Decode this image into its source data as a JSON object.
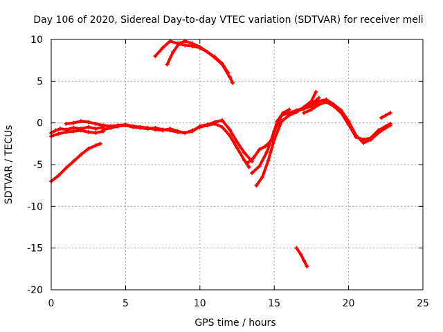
{
  "chart_data": {
    "type": "line",
    "title": "Day 106 of 2020, Sidereal Day-to-day VTEC variation (SDTVAR) for receiver meli",
    "xlabel": "GPS time / hours",
    "ylabel": "SDTVAR / TECUs",
    "xlim": [
      0,
      25
    ],
    "ylim": [
      -20,
      10
    ],
    "xticks": [
      0,
      5,
      10,
      15,
      20,
      25
    ],
    "yticks": [
      -20,
      -15,
      -10,
      -5,
      0,
      5,
      10
    ],
    "grid": true,
    "color": "#ff0000",
    "series": [
      {
        "name": "track-main-a",
        "x": [
          0.0,
          0.3,
          0.6,
          1.0,
          1.5,
          2.0,
          2.5,
          3.0,
          3.5
        ],
        "y": [
          -1.2,
          -0.9,
          -0.7,
          -0.8,
          -0.6,
          -0.7,
          -0.5,
          -0.7,
          -0.5
        ]
      },
      {
        "name": "track-main-b",
        "x": [
          0.0,
          0.5,
          1.0,
          1.5,
          2.0,
          2.5,
          3.0,
          3.5
        ],
        "y": [
          -1.6,
          -1.3,
          -1.1,
          -1.0,
          -0.9,
          -1.1,
          -1.2,
          -1.0
        ]
      },
      {
        "name": "track-main-c",
        "x": [
          1.0,
          1.5,
          2.0,
          2.5,
          3.0,
          3.5,
          4.0,
          4.5,
          5.0,
          5.5,
          6.0,
          6.5,
          7.0,
          7.5,
          8.0,
          8.5,
          9.0,
          9.5,
          10.0,
          10.5,
          11.0,
          11.5,
          12.0,
          12.5,
          13.0,
          13.3
        ],
        "y": [
          -0.1,
          0.0,
          0.2,
          0.1,
          -0.1,
          -0.3,
          -0.4,
          -0.3,
          -0.2,
          -0.4,
          -0.5,
          -0.6,
          -0.8,
          -0.9,
          -0.7,
          -1.0,
          -1.2,
          -0.9,
          -0.5,
          -0.3,
          -0.1,
          -0.5,
          -1.5,
          -3.0,
          -4.5,
          -5.3
        ]
      },
      {
        "name": "track-main-d",
        "x": [
          3.5,
          4.0,
          4.5,
          5.0,
          5.5,
          6.0,
          6.5,
          7.0,
          7.5,
          8.0,
          8.5,
          9.0,
          9.5,
          10.0,
          10.5,
          11.0,
          11.5,
          12.0,
          12.5,
          13.0,
          13.5
        ],
        "y": [
          -0.8,
          -0.6,
          -0.4,
          -0.3,
          -0.5,
          -0.6,
          -0.7,
          -0.6,
          -0.8,
          -0.9,
          -1.1,
          -1.2,
          -1.0,
          -0.4,
          -0.2,
          0.1,
          0.3,
          -0.8,
          -2.3,
          -3.6,
          -4.6
        ]
      },
      {
        "name": "track-morning-rise",
        "x": [
          0.0,
          0.5,
          1.0,
          1.5,
          2.0,
          2.5,
          3.0,
          3.3
        ],
        "y": [
          -7.0,
          -6.3,
          -5.4,
          -4.6,
          -3.8,
          -3.1,
          -2.7,
          -2.5
        ]
      },
      {
        "name": "track-high-a",
        "x": [
          7.0,
          7.5,
          8.0,
          8.5,
          9.0,
          9.5,
          10.0,
          10.5,
          11.0,
          11.5,
          12.0,
          12.2
        ],
        "y": [
          8.0,
          9.0,
          9.8,
          9.5,
          9.3,
          9.2,
          9.0,
          8.5,
          7.8,
          7.0,
          5.5,
          4.8
        ]
      },
      {
        "name": "track-high-b",
        "x": [
          7.8,
          8.2,
          8.6,
          9.0,
          9.5,
          10.0,
          10.5,
          11.0,
          11.5,
          11.9
        ],
        "y": [
          7.0,
          8.5,
          9.5,
          9.8,
          9.5,
          9.1,
          8.5,
          7.9,
          7.1,
          6.0
        ]
      },
      {
        "name": "track-dip-rise-a",
        "x": [
          13.5,
          14.0,
          14.5,
          15.0,
          15.5,
          16.0,
          16.5,
          17.0,
          17.5,
          18.0
        ],
        "y": [
          -6.0,
          -5.2,
          -3.5,
          -1.0,
          0.9,
          1.2,
          1.5,
          1.8,
          2.2,
          3.0
        ]
      },
      {
        "name": "track-dip-rise-b",
        "x": [
          13.8,
          14.2,
          14.6,
          15.0,
          15.5,
          16.0,
          16.5,
          17.0,
          17.5,
          17.8
        ],
        "y": [
          -7.5,
          -6.5,
          -4.5,
          -2.0,
          0.2,
          0.9,
          1.3,
          1.9,
          2.6,
          3.7
        ]
      },
      {
        "name": "track-dip-rise-c",
        "x": [
          13.2,
          13.6,
          14.0,
          14.4,
          14.8,
          15.2,
          15.6,
          16.0
        ],
        "y": [
          -4.8,
          -4.2,
          -3.2,
          -2.8,
          -2.1,
          0.2,
          1.2,
          1.6
        ]
      },
      {
        "name": "track-evening-a",
        "x": [
          16.0,
          16.5,
          17.0,
          17.5,
          18.0,
          18.5,
          19.0,
          19.5,
          20.0,
          20.5,
          21.0,
          21.5,
          22.0,
          22.5,
          22.8
        ],
        "y": [
          1.0,
          1.4,
          1.7,
          2.0,
          2.6,
          2.8,
          2.2,
          1.5,
          0.2,
          -1.5,
          -2.4,
          -2.0,
          -1.2,
          -0.6,
          -0.3
        ]
      },
      {
        "name": "track-evening-b",
        "x": [
          17.0,
          17.5,
          18.0,
          18.5,
          19.0,
          19.5,
          20.0,
          20.5,
          21.0,
          21.5,
          22.0,
          22.5,
          22.8
        ],
        "y": [
          1.2,
          1.6,
          2.2,
          2.5,
          2.0,
          1.2,
          -0.2,
          -1.7,
          -2.0,
          -1.8,
          -0.9,
          -0.4,
          -0.1
        ]
      },
      {
        "name": "track-late-up",
        "x": [
          22.2,
          22.5,
          22.8
        ],
        "y": [
          0.6,
          0.9,
          1.2
        ]
      },
      {
        "name": "track-outlier-low",
        "x": [
          16.5,
          16.8,
          17.0,
          17.2
        ],
        "y": [
          -15.0,
          -15.8,
          -16.5,
          -17.2
        ]
      }
    ]
  }
}
